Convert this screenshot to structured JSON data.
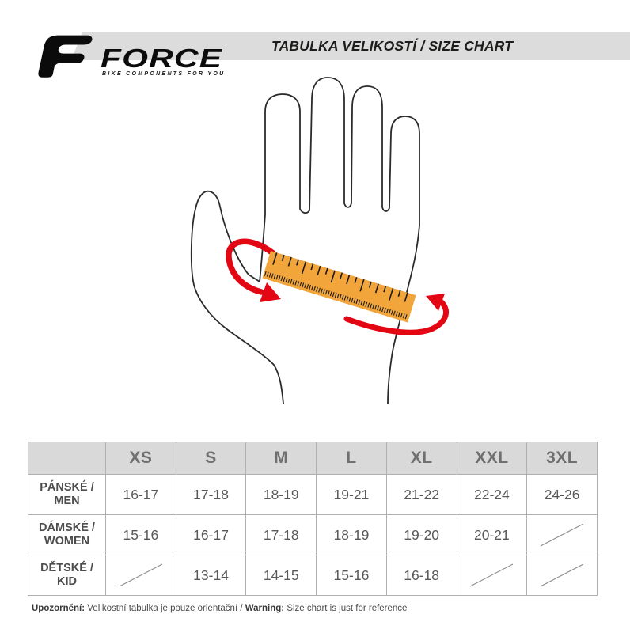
{
  "brand": {
    "name": "FORCE",
    "tagline": "BIKE COMPONENTS FOR YOU"
  },
  "header": {
    "title": "TABULKA VELIKOSTÍ / SIZE CHART",
    "band_color": "#dcdcdc"
  },
  "illustration": {
    "type": "hand-circumference-measurement-diagram",
    "ruler_color": "#F2A53B",
    "arrow_color": "#E30613",
    "outline_color": "#2b2b2b"
  },
  "size_table": {
    "corner_label": "",
    "sizes": [
      "XS",
      "S",
      "M",
      "L",
      "XL",
      "XXL",
      "3XL"
    ],
    "rows": [
      {
        "label_lines": [
          "PÁNSKÉ /",
          "MEN"
        ],
        "values": [
          "16-17",
          "17-18",
          "18-19",
          "19-21",
          "21-22",
          "22-24",
          "24-26"
        ]
      },
      {
        "label_lines": [
          "DÁMSKÉ /",
          "WOMEN"
        ],
        "values": [
          "15-16",
          "16-17",
          "17-18",
          "18-19",
          "19-20",
          "20-21",
          null
        ]
      },
      {
        "label_lines": [
          "DĚTSKÉ /",
          "KID"
        ],
        "values": [
          null,
          "13-14",
          "14-15",
          "15-16",
          "16-18",
          null,
          null
        ]
      }
    ]
  },
  "footer": {
    "note_label_cs": "Upozornění:",
    "note_cs": " Velikostní tabulka je pouze orientační / ",
    "note_label_en": "Warning:",
    "note_en": " Size chart is just for reference"
  }
}
